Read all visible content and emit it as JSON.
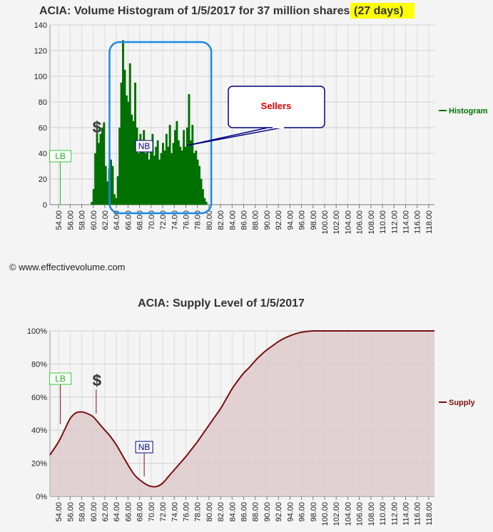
{
  "copyright": "© www.effectivevolume.com",
  "chart_data": [
    {
      "type": "area",
      "title": "ACIA: Volume Histogram of 1/5/2017 for 37 million shares",
      "title_highlight": "(27 days)",
      "highlight_color": "#ffff00",
      "series": [
        {
          "name": "Histogram",
          "color": "#007000"
        }
      ],
      "ylim": [
        0,
        140
      ],
      "yticks": [
        "0",
        "20",
        "40",
        "60",
        "80",
        "100",
        "120",
        "140"
      ],
      "xlim": [
        52.5,
        119
      ],
      "xticks": [
        "54.00",
        "56.00",
        "58.00",
        "60.00",
        "62.00",
        "64.00",
        "66.00",
        "68.00",
        "70.00",
        "72.00",
        "74.00",
        "76.00",
        "78.00",
        "80.00",
        "82.00",
        "84.00",
        "86.00",
        "88.00",
        "90.00",
        "92.00",
        "94.00",
        "96.00",
        "98.00",
        "100.00",
        "102.00",
        "104.00",
        "106.00",
        "108.00",
        "110.00",
        "112.00",
        "114.00",
        "116.00",
        "118.00"
      ],
      "x": [
        59.6,
        59.9,
        60.2,
        60.5,
        60.8,
        61.1,
        61.4,
        61.7,
        62.0,
        62.3,
        62.6,
        62.9,
        63.2,
        63.5,
        63.8,
        64.1,
        64.4,
        64.7,
        65.0,
        65.3,
        65.6,
        65.9,
        66.2,
        66.5,
        66.8,
        67.1,
        67.4,
        67.7,
        68.0,
        68.3,
        68.6,
        68.9,
        69.2,
        69.5,
        69.8,
        70.1,
        70.4,
        70.7,
        71.0,
        71.3,
        71.6,
        71.9,
        72.2,
        72.5,
        72.8,
        73.1,
        73.4,
        73.7,
        74.0,
        74.3,
        74.6,
        74.9,
        75.2,
        75.5,
        75.8,
        76.1,
        76.4,
        76.7,
        77.0,
        77.3,
        77.6,
        77.9,
        78.2,
        78.5,
        78.8,
        79.1,
        79.4
      ],
      "values": [
        2,
        12,
        40,
        62,
        48,
        55,
        60,
        64,
        30,
        18,
        28,
        35,
        30,
        8,
        5,
        22,
        60,
        95,
        128,
        105,
        85,
        80,
        110,
        70,
        65,
        95,
        60,
        40,
        55,
        45,
        58,
        40,
        50,
        35,
        42,
        55,
        38,
        45,
        50,
        35,
        40,
        48,
        42,
        55,
        45,
        62,
        40,
        48,
        58,
        65,
        50,
        45,
        42,
        58,
        45,
        60,
        86,
        50,
        62,
        40,
        42,
        35,
        30,
        20,
        12,
        5,
        2
      ],
      "annotations": [
        {
          "label": "$",
          "x": 60.5,
          "y": 61
        },
        {
          "label": "LB",
          "x": 54.3,
          "y": 38
        },
        {
          "label": "NB",
          "x": 68.8,
          "y": 46
        },
        {
          "label": "Sellers",
          "color": "#e00000"
        }
      ],
      "highlight_box_x": [
        62.8,
        80.4
      ]
    },
    {
      "type": "area",
      "title": "ACIA: Supply Level of 1/5/2017",
      "series": [
        {
          "name": "Supply",
          "color": "#7a1010",
          "fill": "#dcc8cb"
        }
      ],
      "ylim": [
        0,
        100
      ],
      "yticks": [
        "0%",
        "20%",
        "40%",
        "60%",
        "80%",
        "100%"
      ],
      "xlim": [
        52.5,
        119
      ],
      "xticks": [
        "54.00",
        "56.00",
        "58.00",
        "60.00",
        "62.00",
        "64.00",
        "66.00",
        "68.00",
        "70.00",
        "72.00",
        "74.00",
        "76.00",
        "78.00",
        "80.00",
        "82.00",
        "84.00",
        "86.00",
        "88.00",
        "90.00",
        "92.00",
        "94.00",
        "96.00",
        "98.00",
        "100.00",
        "102.00",
        "104.00",
        "106.00",
        "108.00",
        "110.00",
        "112.00",
        "114.00",
        "116.00",
        "118.00"
      ],
      "x": [
        52.5,
        54,
        55,
        56,
        57,
        58,
        59,
        60,
        61,
        62,
        63,
        64,
        65,
        66,
        67,
        68,
        69,
        70,
        71,
        72,
        73,
        74,
        75,
        76,
        77,
        78,
        79,
        80,
        81,
        82,
        83,
        84,
        85,
        86,
        87,
        88,
        89,
        90,
        91,
        92,
        93,
        94,
        95,
        96,
        97,
        98,
        99,
        100,
        101,
        102,
        104,
        106,
        110,
        114,
        119
      ],
      "values": [
        25,
        33,
        40,
        47,
        50.5,
        51,
        50,
        48,
        44,
        40,
        36,
        31,
        25,
        19,
        13.5,
        10,
        7.5,
        6,
        6,
        8,
        12,
        16,
        20,
        24,
        28.5,
        33,
        38,
        43,
        48,
        53,
        59,
        65,
        70,
        74.5,
        78,
        82,
        85.5,
        88.5,
        91,
        93.5,
        95.5,
        97,
        98.3,
        99.2,
        99.7,
        100,
        100,
        100,
        100,
        100,
        100,
        100,
        100,
        100,
        100
      ],
      "annotations": [
        {
          "label": "LB",
          "x": 54.3,
          "y": 45
        },
        {
          "label": "$",
          "x": 60.5,
          "y": 50
        },
        {
          "label": "NB",
          "x": 68.8,
          "y": 12
        }
      ]
    }
  ]
}
